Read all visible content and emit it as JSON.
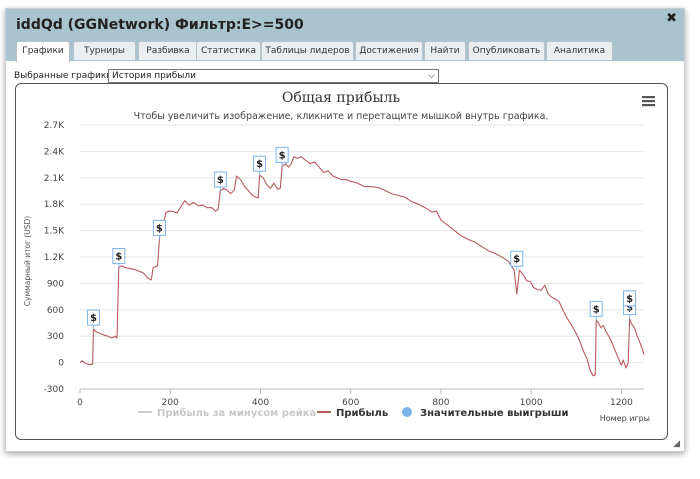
{
  "window": {
    "title": "iddQd (GGNetwork) Фильтр:E>=500",
    "close_glyph": "✖"
  },
  "tabs": [
    {
      "label": "Графики",
      "active": true
    },
    {
      "label": "Турниры"
    },
    {
      "label": "Разбивка"
    },
    {
      "label": "Статистика"
    },
    {
      "label": "Таблицы лидеров"
    },
    {
      "label": "Достижения"
    },
    {
      "label": "Найти"
    },
    {
      "label": "Опубликовать"
    },
    {
      "label": "Аналитика"
    }
  ],
  "selector": {
    "label": "Выбранные графики:",
    "value": "История прибыли",
    "chevron": "⌵"
  },
  "chart_menu_icon": "hamburger-icon",
  "chart_data": {
    "type": "line",
    "title": "Общая прибыль",
    "subtitle": "Чтобы увеличить изображение, кликните и перетащите мышкой внутрь графика.",
    "xlabel": "Номер игры",
    "ylabel": "Суммарный итог (USD)",
    "xlim": [
      0,
      1250
    ],
    "ylim": [
      -300,
      2700
    ],
    "x_ticks": [
      "0",
      "200",
      "400",
      "600",
      "800",
      "1000",
      "1200"
    ],
    "y_ticks": [
      "-300",
      "0",
      "300",
      "600",
      "900",
      "1.2K",
      "1.5K",
      "1.8K",
      "2.1K",
      "2.4K",
      "2.7K"
    ],
    "grid": true,
    "legend_position": "bottom",
    "series": [
      {
        "name": "Прибыль за минусом рейка",
        "color": "#cccccc",
        "hidden": true,
        "points": []
      },
      {
        "name": "Прибыль",
        "color": "#b85a5f",
        "points": [
          [
            0,
            0
          ],
          [
            5,
            20
          ],
          [
            12,
            -10
          ],
          [
            20,
            -20
          ],
          [
            28,
            -20
          ],
          [
            30,
            380
          ],
          [
            36,
            350
          ],
          [
            45,
            330
          ],
          [
            55,
            310
          ],
          [
            62,
            300
          ],
          [
            70,
            280
          ],
          [
            78,
            300
          ],
          [
            82,
            280
          ],
          [
            86,
            1080
          ],
          [
            92,
            1100
          ],
          [
            100,
            1080
          ],
          [
            110,
            1070
          ],
          [
            120,
            1060
          ],
          [
            130,
            1040
          ],
          [
            140,
            1020
          ],
          [
            150,
            960
          ],
          [
            158,
            940
          ],
          [
            162,
            1080
          ],
          [
            172,
            1100
          ],
          [
            176,
            1400
          ],
          [
            180,
            1620
          ],
          [
            186,
            1600
          ],
          [
            190,
            1700
          ],
          [
            196,
            1720
          ],
          [
            205,
            1720
          ],
          [
            215,
            1700
          ],
          [
            222,
            1760
          ],
          [
            232,
            1840
          ],
          [
            242,
            1790
          ],
          [
            252,
            1820
          ],
          [
            262,
            1780
          ],
          [
            272,
            1790
          ],
          [
            282,
            1760
          ],
          [
            292,
            1760
          ],
          [
            300,
            1720
          ],
          [
            306,
            1740
          ],
          [
            311,
            1950
          ],
          [
            318,
            1980
          ],
          [
            326,
            1960
          ],
          [
            334,
            1920
          ],
          [
            342,
            1960
          ],
          [
            347,
            2120
          ],
          [
            356,
            2080
          ],
          [
            365,
            2000
          ],
          [
            374,
            1950
          ],
          [
            382,
            1900
          ],
          [
            390,
            1880
          ],
          [
            395,
            1870
          ],
          [
            398,
            2130
          ],
          [
            406,
            2100
          ],
          [
            414,
            2020
          ],
          [
            422,
            1980
          ],
          [
            430,
            2040
          ],
          [
            438,
            1970
          ],
          [
            444,
            1980
          ],
          [
            448,
            2230
          ],
          [
            456,
            2260
          ],
          [
            462,
            2220
          ],
          [
            468,
            2260
          ],
          [
            474,
            2340
          ],
          [
            482,
            2320
          ],
          [
            490,
            2340
          ],
          [
            500,
            2300
          ],
          [
            510,
            2260
          ],
          [
            520,
            2280
          ],
          [
            530,
            2220
          ],
          [
            540,
            2160
          ],
          [
            550,
            2180
          ],
          [
            560,
            2120
          ],
          [
            570,
            2100
          ],
          [
            580,
            2080
          ],
          [
            590,
            2080
          ],
          [
            600,
            2060
          ],
          [
            615,
            2040
          ],
          [
            630,
            2000
          ],
          [
            645,
            2000
          ],
          [
            660,
            1990
          ],
          [
            675,
            1960
          ],
          [
            690,
            1920
          ],
          [
            705,
            1900
          ],
          [
            720,
            1880
          ],
          [
            735,
            1830
          ],
          [
            750,
            1800
          ],
          [
            765,
            1760
          ],
          [
            780,
            1710
          ],
          [
            790,
            1720
          ],
          [
            800,
            1620
          ],
          [
            815,
            1560
          ],
          [
            830,
            1500
          ],
          [
            845,
            1440
          ],
          [
            860,
            1400
          ],
          [
            875,
            1370
          ],
          [
            890,
            1320
          ],
          [
            905,
            1270
          ],
          [
            920,
            1240
          ],
          [
            935,
            1200
          ],
          [
            950,
            1150
          ],
          [
            962,
            1050
          ],
          [
            968,
            780
          ],
          [
            974,
            1050
          ],
          [
            982,
            1000
          ],
          [
            990,
            930
          ],
          [
            998,
            920
          ],
          [
            1006,
            850
          ],
          [
            1014,
            830
          ],
          [
            1022,
            820
          ],
          [
            1030,
            880
          ],
          [
            1038,
            780
          ],
          [
            1046,
            740
          ],
          [
            1054,
            720
          ],
          [
            1062,
            690
          ],
          [
            1070,
            600
          ],
          [
            1080,
            500
          ],
          [
            1090,
            420
          ],
          [
            1100,
            330
          ],
          [
            1108,
            240
          ],
          [
            1116,
            130
          ],
          [
            1124,
            40
          ],
          [
            1130,
            -80
          ],
          [
            1137,
            -150
          ],
          [
            1142,
            -140
          ],
          [
            1144,
            480
          ],
          [
            1148,
            460
          ],
          [
            1154,
            400
          ],
          [
            1160,
            420
          ],
          [
            1166,
            350
          ],
          [
            1172,
            300
          ],
          [
            1178,
            240
          ],
          [
            1186,
            140
          ],
          [
            1194,
            40
          ],
          [
            1200,
            -30
          ],
          [
            1204,
            30
          ],
          [
            1210,
            -60
          ],
          [
            1215,
            0
          ],
          [
            1218,
            500
          ],
          [
            1222,
            440
          ],
          [
            1226,
            420
          ],
          [
            1230,
            380
          ],
          [
            1235,
            300
          ],
          [
            1240,
            240
          ],
          [
            1246,
            160
          ],
          [
            1250,
            90
          ]
        ]
      },
      {
        "name": "Значительные выигрыши",
        "color": "#7cb5ec",
        "marker": "$",
        "points": [
          [
            30,
            380
          ],
          [
            86,
            1080
          ],
          [
            176,
            1400
          ],
          [
            311,
            1950
          ],
          [
            398,
            2130
          ],
          [
            448,
            2230
          ],
          [
            968,
            1050
          ],
          [
            1144,
            480
          ],
          [
            1218,
            500
          ],
          [
            1218,
            600
          ]
        ]
      }
    ]
  }
}
